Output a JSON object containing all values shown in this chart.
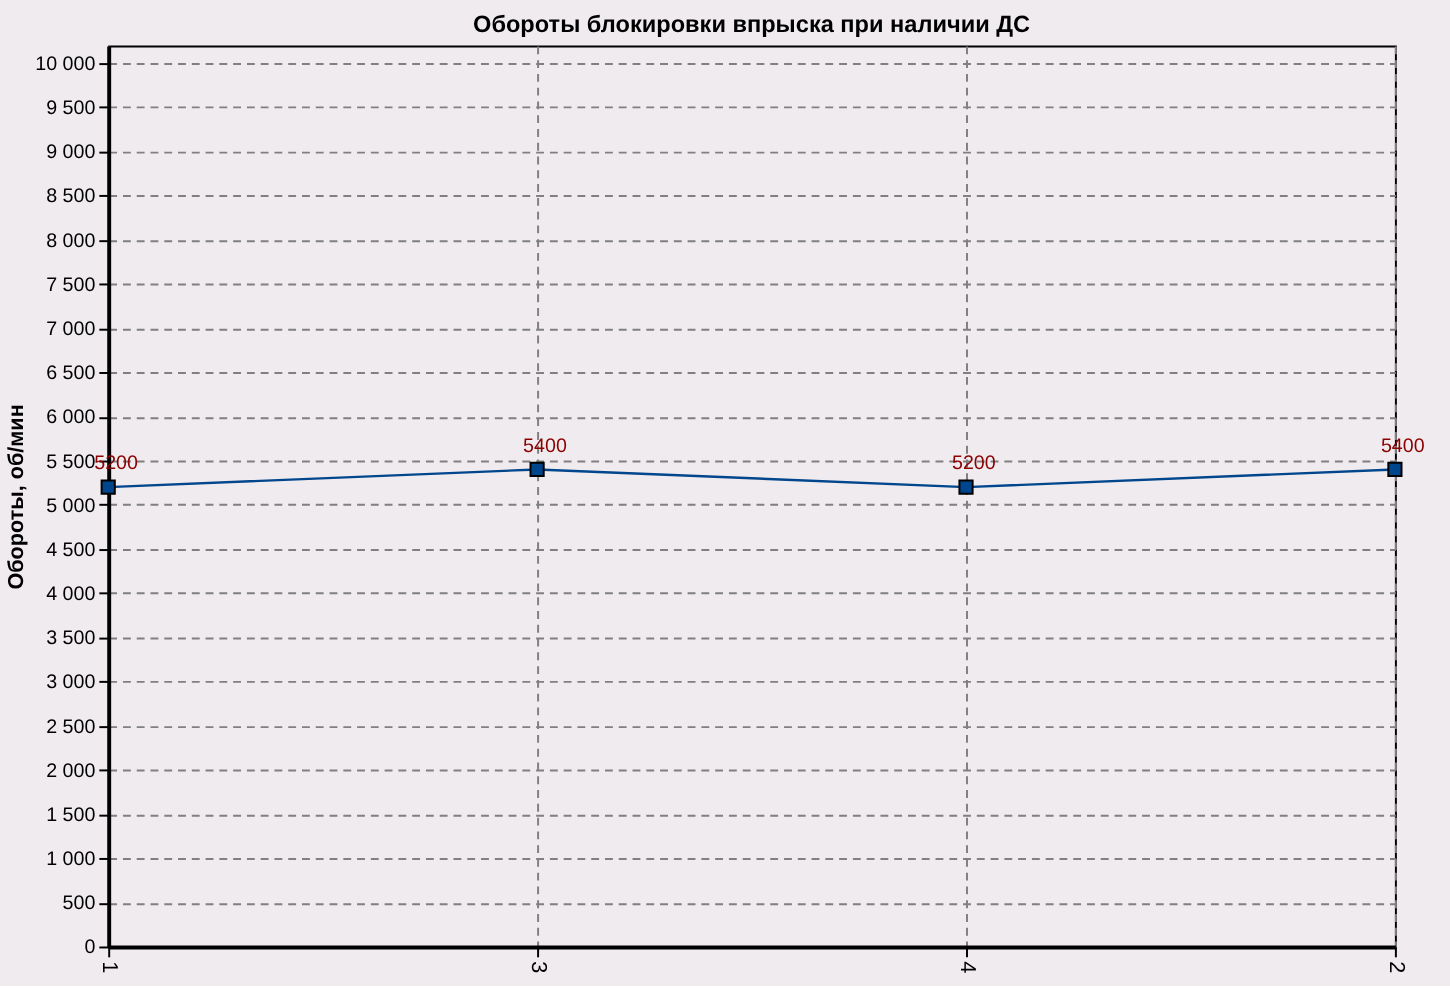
{
  "chart_data": {
    "type": "line",
    "title": "Обороты блокировки впрыска при наличии ДС",
    "ylabel": "Обороты, об/мин",
    "categories": [
      "1",
      "3",
      "4",
      "2"
    ],
    "series": [
      {
        "color": "#00468c",
        "values": [
          5200,
          5400,
          5200,
          5400
        ]
      }
    ],
    "ylim": [
      0,
      10200
    ],
    "yticks": [
      0,
      500,
      {
        "value": 1000,
        "label": "1 000"
      },
      {
        "value": 1500,
        "label": "1 500"
      },
      {
        "value": 2000,
        "label": "2 000"
      },
      {
        "value": 2500,
        "label": "2 500"
      },
      {
        "value": 3000,
        "label": "3 000"
      },
      {
        "value": 3500,
        "label": "3 500"
      },
      {
        "value": 4000,
        "label": "4 000"
      },
      {
        "value": 4500,
        "label": "4 500"
      },
      {
        "value": 5000,
        "label": "5 000"
      },
      {
        "value": 5500,
        "label": "5 500"
      },
      {
        "value": 6000,
        "label": "6 000"
      },
      {
        "value": 6500,
        "label": "6 500"
      },
      {
        "value": 7000,
        "label": "7 000"
      },
      {
        "value": 7500,
        "label": "7 500"
      },
      {
        "value": 8000,
        "label": "8 000"
      },
      {
        "value": 8500,
        "label": "8 500"
      },
      {
        "value": 9000,
        "label": "9 000"
      },
      {
        "value": 9500,
        "label": "9 500"
      },
      {
        "value": 10000,
        "label": "10 000"
      }
    ],
    "grid": true,
    "marker": "square",
    "line_style": "solid",
    "data_labels": true
  }
}
